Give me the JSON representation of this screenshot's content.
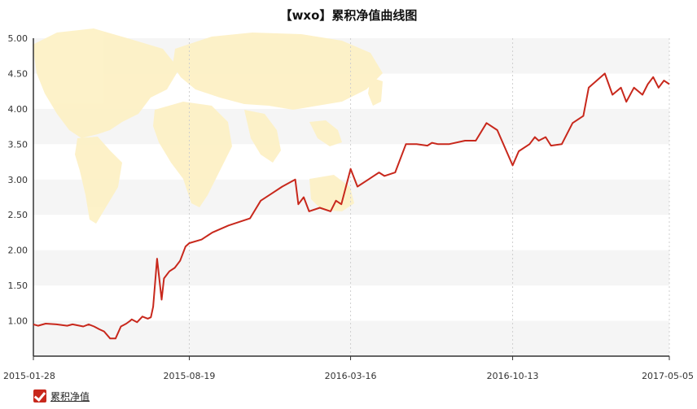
{
  "colors": {
    "line": "#c8281c",
    "band": "#f5f5f5",
    "map": "#fdf1c6",
    "grid": "#cfcfcf"
  },
  "legend": {
    "label": "累积净值",
    "checked": true
  },
  "chart_data": {
    "type": "line",
    "title": "【wxo】累积净值曲线图",
    "xlabel": "",
    "ylabel": "",
    "ylim": [
      0.5,
      5.0
    ],
    "xlim": [
      "2015-01-28",
      "2017-05-05"
    ],
    "x_ticks": [
      "2015-01-28",
      "2015-08-19",
      "2016-03-16",
      "2016-10-13",
      "2017-05-05"
    ],
    "y_ticks": [
      "1.00",
      "1.50",
      "2.00",
      "2.50",
      "3.00",
      "3.50",
      "4.00",
      "4.50",
      "5.00"
    ],
    "grid": {
      "horizontal_bands": true,
      "vertical_dotted": true
    },
    "background": "world-map",
    "legend_position": "bottom-left",
    "series": [
      {
        "name": "累积净值",
        "x": [
          "2015-01-28",
          "2015-02-03",
          "2015-02-13",
          "2015-02-27",
          "2015-03-13",
          "2015-03-20",
          "2015-04-03",
          "2015-04-10",
          "2015-04-17",
          "2015-04-24",
          "2015-04-30",
          "2015-05-08",
          "2015-05-15",
          "2015-05-22",
          "2015-05-29",
          "2015-06-03",
          "2015-06-05",
          "2015-06-12",
          "2015-06-19",
          "2015-06-26",
          "2015-06-30",
          "2015-07-03",
          "2015-07-08",
          "2015-07-14",
          "2015-07-17",
          "2015-07-24",
          "2015-07-31",
          "2015-08-07",
          "2015-08-14",
          "2015-08-19",
          "2015-09-04",
          "2015-09-18",
          "2015-10-09",
          "2015-10-23",
          "2015-11-06",
          "2015-11-20",
          "2015-12-04",
          "2015-12-18",
          "2016-01-04",
          "2016-01-08",
          "2016-01-15",
          "2016-01-22",
          "2016-02-05",
          "2016-02-19",
          "2016-02-26",
          "2016-03-04",
          "2016-03-16",
          "2016-03-25",
          "2016-04-08",
          "2016-04-15",
          "2016-04-22",
          "2016-04-29",
          "2016-05-13",
          "2016-05-27",
          "2016-06-10",
          "2016-06-24",
          "2016-06-30",
          "2016-07-08",
          "2016-07-22",
          "2016-08-12",
          "2016-08-26",
          "2016-09-09",
          "2016-09-23",
          "2016-10-13",
          "2016-10-21",
          "2016-11-04",
          "2016-11-11",
          "2016-11-16",
          "2016-11-25",
          "2016-12-02",
          "2016-12-16",
          "2016-12-30",
          "2017-01-13",
          "2017-01-20",
          "2017-02-10",
          "2017-02-20",
          "2017-03-03",
          "2017-03-10",
          "2017-03-20",
          "2017-03-31",
          "2017-04-07",
          "2017-04-14",
          "2017-04-21",
          "2017-04-28",
          "2017-05-05"
        ],
        "values": [
          0.95,
          0.93,
          0.96,
          0.95,
          0.93,
          0.95,
          0.92,
          0.95,
          0.92,
          0.88,
          0.85,
          0.75,
          0.75,
          0.92,
          0.96,
          1.0,
          1.02,
          0.98,
          1.06,
          1.03,
          1.05,
          1.2,
          1.88,
          1.3,
          1.6,
          1.7,
          1.75,
          1.85,
          2.05,
          2.1,
          2.15,
          2.25,
          2.35,
          2.4,
          2.45,
          2.7,
          2.8,
          2.9,
          3.0,
          2.65,
          2.75,
          2.55,
          2.6,
          2.55,
          2.7,
          2.65,
          3.15,
          2.9,
          3.0,
          3.05,
          3.1,
          3.05,
          3.1,
          3.5,
          3.5,
          3.48,
          3.52,
          3.5,
          3.5,
          3.55,
          3.55,
          3.8,
          3.7,
          3.2,
          3.4,
          3.5,
          3.6,
          3.55,
          3.6,
          3.48,
          3.5,
          3.8,
          3.9,
          4.3,
          4.5,
          4.2,
          4.3,
          4.1,
          4.3,
          4.2,
          4.35,
          4.45,
          4.3,
          4.4,
          4.35
        ]
      }
    ]
  }
}
